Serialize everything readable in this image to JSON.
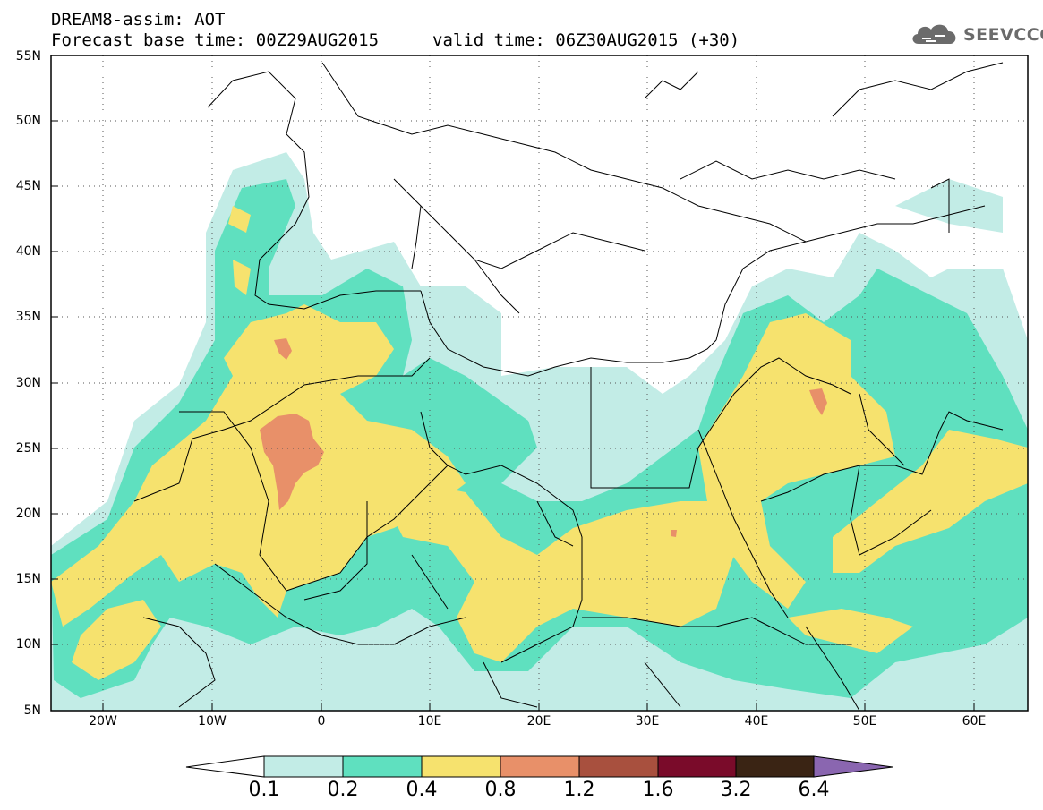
{
  "header": {
    "title_line1": "DREAM8-assim: AOT",
    "base_time": "Forecast base time: 00Z29AUG2015",
    "valid_time": "valid time: 06Z30AUG2015 (+30)",
    "logo_text": "SEEVCCC",
    "logo_icon": "cloud-icon"
  },
  "map": {
    "lat_labels": [
      "55N",
      "50N",
      "45N",
      "40N",
      "35N",
      "30N",
      "25N",
      "20N",
      "15N",
      "10N",
      "5N"
    ],
    "lon_labels": [
      "20W",
      "10W",
      "0",
      "10E",
      "20E",
      "30E",
      "40E",
      "50E",
      "60E"
    ],
    "lon_range": [
      -25,
      65
    ],
    "lat_range": [
      5,
      55
    ],
    "colors": {
      "land_boundaries": "#000000",
      "grid": "#555555"
    }
  },
  "colorbar": {
    "levels": [
      "0.1",
      "0.2",
      "0.4",
      "0.8",
      "1.2",
      "1.6",
      "3.2",
      "6.4"
    ],
    "colors": [
      "#ffffff",
      "#c2ece6",
      "#5fe0bf",
      "#f6e26e",
      "#e89069",
      "#a8503e",
      "#7a0b2a",
      "#3a2414",
      "#8a66b0"
    ]
  }
}
